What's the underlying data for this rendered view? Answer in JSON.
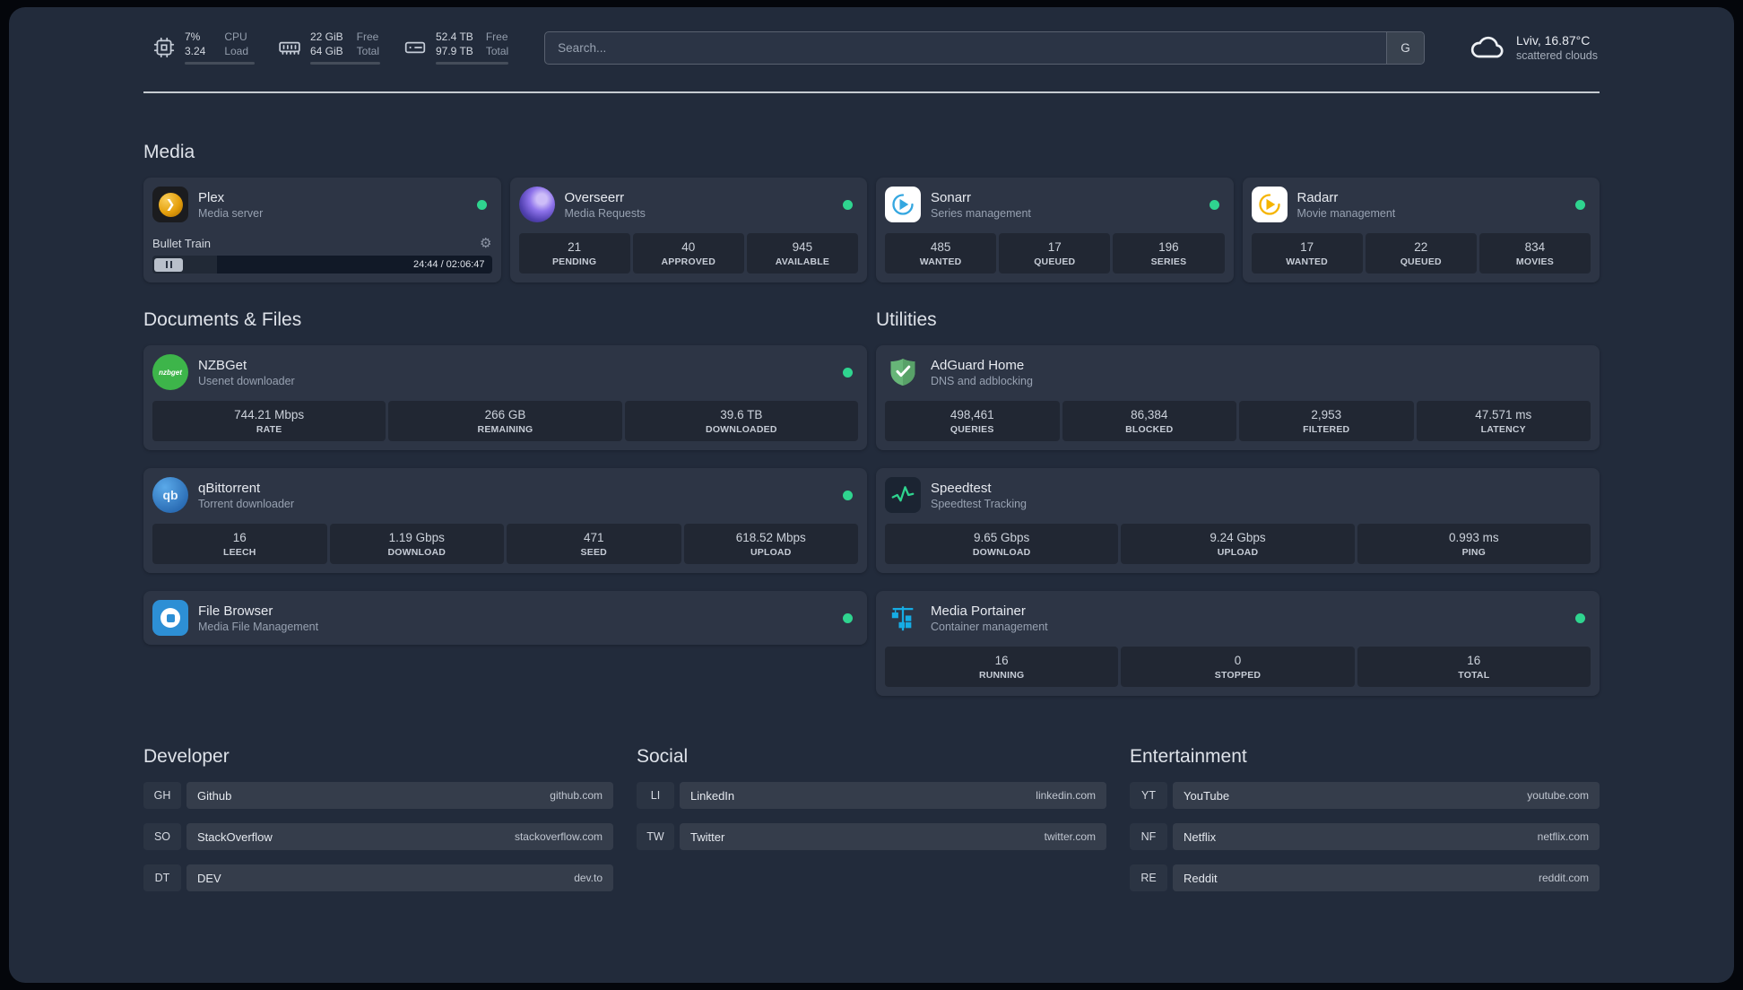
{
  "colors": {
    "status_online": "#2fd48f",
    "plex": "#e5a00d",
    "overseerr": "#8d72ea",
    "sonarr": "#35a7e0",
    "radarr": "#f5b400",
    "nzbget": "#3db54a",
    "qbittorrent": "#2a6cb4",
    "adguard": "#67b578",
    "speedtest": "#2fd48f",
    "portainer": "#16ace4",
    "filebrowser": "#2d8fd5"
  },
  "icons": {
    "plex_glyph": "❯",
    "gear_glyph": "⚙",
    "nzbget_label": "nzbget",
    "qbittorrent_label": "qb"
  },
  "topbar": {
    "resources": [
      {
        "values": [
          "7%",
          "3.24"
        ],
        "labels": [
          "CPU",
          "Load"
        ],
        "percent": 7
      },
      {
        "values": [
          "22 GiB",
          "64 GiB"
        ],
        "labels": [
          "Free",
          "Total"
        ],
        "percent": 66
      },
      {
        "values": [
          "52.4 TB",
          "97.9 TB"
        ],
        "labels": [
          "Free",
          "Total"
        ],
        "percent": 46
      }
    ],
    "search": {
      "placeholder": "Search...",
      "provider_label": "G"
    },
    "weather": {
      "location": "Lviv, 16.87°C",
      "condition": "scattered clouds"
    }
  },
  "sections": {
    "media": {
      "title": "Media",
      "cards": [
        {
          "name": "Plex",
          "description": "Media server",
          "status": "online",
          "player": {
            "track": "Bullet Train",
            "time_display": "24:44 / 02:06:47",
            "progress_percent": 19
          }
        },
        {
          "name": "Overseerr",
          "description": "Media Requests",
          "status": "online",
          "stats": [
            {
              "value": "21",
              "label": "PENDING"
            },
            {
              "value": "40",
              "label": "APPROVED"
            },
            {
              "value": "945",
              "label": "AVAILABLE"
            }
          ]
        },
        {
          "name": "Sonarr",
          "description": "Series management",
          "status": "online",
          "stats": [
            {
              "value": "485",
              "label": "WANTED"
            },
            {
              "value": "17",
              "label": "QUEUED"
            },
            {
              "value": "196",
              "label": "SERIES"
            }
          ]
        },
        {
          "name": "Radarr",
          "description": "Movie management",
          "status": "online",
          "stats": [
            {
              "value": "17",
              "label": "WANTED"
            },
            {
              "value": "22",
              "label": "QUEUED"
            },
            {
              "value": "834",
              "label": "MOVIES"
            }
          ]
        }
      ]
    },
    "documents": {
      "title": "Documents & Files",
      "cards": [
        {
          "name": "NZBGet",
          "description": "Usenet downloader",
          "status": "online",
          "stats": [
            {
              "value": "744.21 Mbps",
              "label": "RATE"
            },
            {
              "value": "266 GB",
              "label": "REMAINING"
            },
            {
              "value": "39.6 TB",
              "label": "DOWNLOADED"
            }
          ]
        },
        {
          "name": "qBittorrent",
          "description": "Torrent downloader",
          "status": "online",
          "stats": [
            {
              "value": "16",
              "label": "LEECH"
            },
            {
              "value": "1.19 Gbps",
              "label": "DOWNLOAD"
            },
            {
              "value": "471",
              "label": "SEED"
            },
            {
              "value": "618.52 Mbps",
              "label": "UPLOAD"
            }
          ]
        },
        {
          "name": "File Browser",
          "description": "Media File Management",
          "status": "online"
        }
      ]
    },
    "utilities": {
      "title": "Utilities",
      "cards": [
        {
          "name": "AdGuard Home",
          "description": "DNS and adblocking",
          "stats": [
            {
              "value": "498,461",
              "label": "QUERIES"
            },
            {
              "value": "86,384",
              "label": "BLOCKED"
            },
            {
              "value": "2,953",
              "label": "FILTERED"
            },
            {
              "value": "47.571 ms",
              "label": "LATENCY"
            }
          ]
        },
        {
          "name": "Speedtest",
          "description": "Speedtest Tracking",
          "stats": [
            {
              "value": "9.65 Gbps",
              "label": "DOWNLOAD"
            },
            {
              "value": "9.24 Gbps",
              "label": "UPLOAD"
            },
            {
              "value": "0.993 ms",
              "label": "PING"
            }
          ]
        },
        {
          "name": "Media Portainer",
          "description": "Container management",
          "status": "online",
          "stats": [
            {
              "value": "16",
              "label": "RUNNING"
            },
            {
              "value": "0",
              "label": "STOPPED"
            },
            {
              "value": "16",
              "label": "TOTAL"
            }
          ]
        }
      ]
    },
    "bookmarks": [
      {
        "title": "Developer",
        "items": [
          {
            "abbr": "GH",
            "name": "Github",
            "url": "github.com"
          },
          {
            "abbr": "SO",
            "name": "StackOverflow",
            "url": "stackoverflow.com"
          },
          {
            "abbr": "DT",
            "name": "DEV",
            "url": "dev.to"
          }
        ]
      },
      {
        "title": "Social",
        "items": [
          {
            "abbr": "LI",
            "name": "LinkedIn",
            "url": "linkedin.com"
          },
          {
            "abbr": "TW",
            "name": "Twitter",
            "url": "twitter.com"
          }
        ]
      },
      {
        "title": "Entertainment",
        "items": [
          {
            "abbr": "YT",
            "name": "YouTube",
            "url": "youtube.com"
          },
          {
            "abbr": "NF",
            "name": "Netflix",
            "url": "netflix.com"
          },
          {
            "abbr": "RE",
            "name": "Reddit",
            "url": "reddit.com"
          }
        ]
      }
    ]
  }
}
